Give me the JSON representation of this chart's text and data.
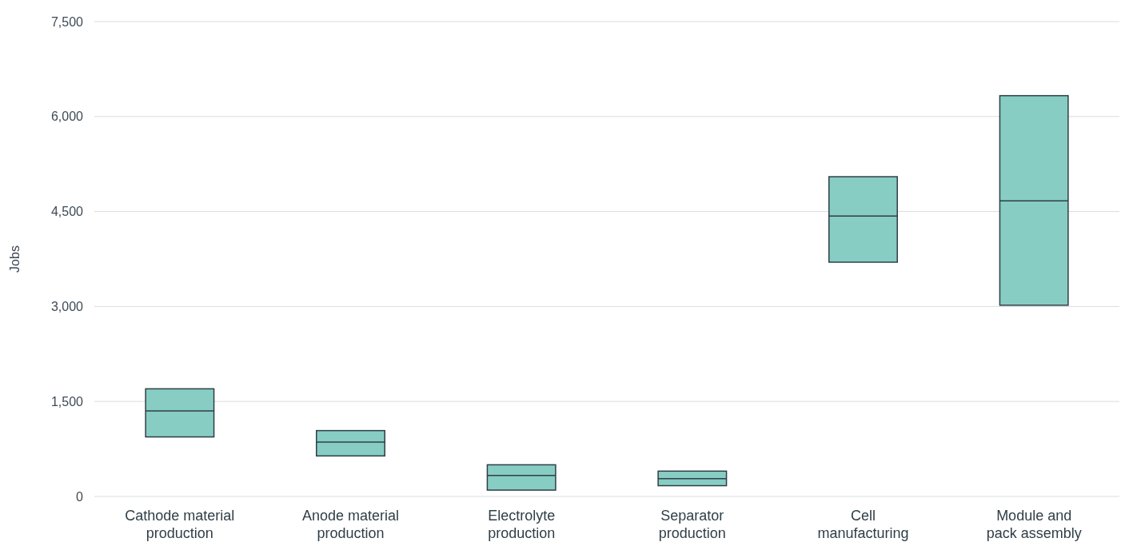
{
  "chart_data": {
    "type": "box",
    "ylabel": "Jobs",
    "categories": [
      "Cathode material production",
      "Anode material production",
      "Electrolyte production",
      "Separator production",
      "Cell manufacturing",
      "Module and pack assembly"
    ],
    "boxes": [
      {
        "low": 940,
        "q1": 940,
        "median": 1350,
        "q3": 1700,
        "high": 1700
      },
      {
        "low": 640,
        "q1": 640,
        "median": 860,
        "q3": 1040,
        "high": 1040
      },
      {
        "low": 100,
        "q1": 100,
        "median": 330,
        "q3": 500,
        "high": 500
      },
      {
        "low": 170,
        "q1": 170,
        "median": 280,
        "q3": 400,
        "high": 400
      },
      {
        "low": 3700,
        "q1": 3700,
        "median": 4430,
        "q3": 5050,
        "high": 5050
      },
      {
        "low": 3020,
        "q1": 3020,
        "median": 4670,
        "q3": 6330,
        "high": 6330
      }
    ],
    "color": "#87cdc3",
    "ylim": [
      0,
      7500
    ],
    "yticks": [
      {
        "value": 0,
        "label": "0"
      },
      {
        "value": 1500,
        "label": "1,500"
      },
      {
        "value": 3000,
        "label": "3,000"
      },
      {
        "value": 4500,
        "label": "4,500"
      },
      {
        "value": 6000,
        "label": "6,000"
      },
      {
        "value": 7500,
        "label": "7,500"
      }
    ],
    "grid": "y"
  }
}
